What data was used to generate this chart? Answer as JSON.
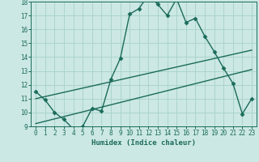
{
  "xlabel": "Humidex (Indice chaleur)",
  "xlim": [
    -0.5,
    23.5
  ],
  "ylim": [
    9,
    18
  ],
  "background_color": "#cce8e4",
  "grid_color": "#aad4cc",
  "line_color": "#1a6b5a",
  "series1_x": [
    0,
    1,
    2,
    3,
    4,
    5,
    6,
    7,
    8,
    9,
    10,
    11,
    12,
    13,
    14,
    15,
    16,
    17,
    18,
    19,
    20,
    21,
    22,
    23
  ],
  "series1_y": [
    11.5,
    10.9,
    10.0,
    9.5,
    8.8,
    9.0,
    10.3,
    10.1,
    12.4,
    13.9,
    17.1,
    17.5,
    18.5,
    17.8,
    17.0,
    18.2,
    16.5,
    16.8,
    15.5,
    14.4,
    13.2,
    12.1,
    9.9,
    11.0
  ],
  "series2_x": [
    0,
    23
  ],
  "series2_y": [
    11.0,
    14.5
  ],
  "series3_x": [
    0,
    23
  ],
  "series3_y": [
    9.2,
    13.1
  ],
  "marker": "D",
  "marker_size": 2.5,
  "line_width": 1.0
}
